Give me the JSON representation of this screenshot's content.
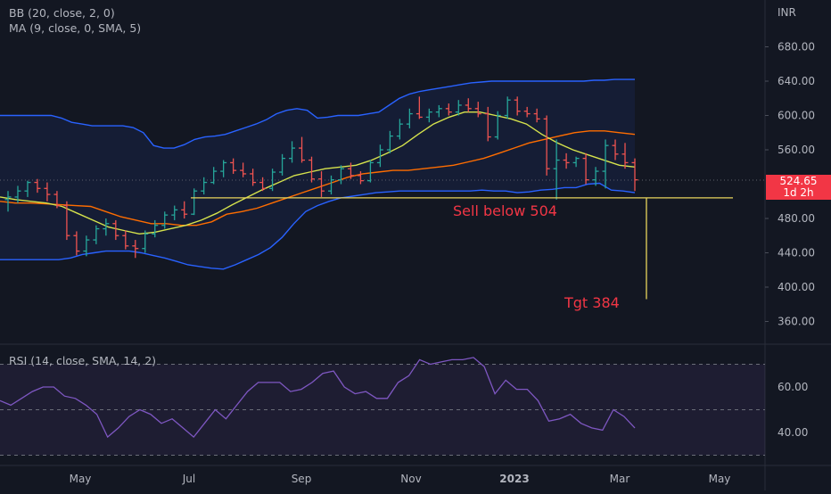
{
  "legend": {
    "bb": "BB (20, close, 2, 0)",
    "ma": "MA (9, close, 0, SMA, 5)",
    "rsi": "RSI (14, close, SMA, 14, 2)"
  },
  "price_axis": {
    "unit": "INR",
    "ticks": [
      "680.00",
      "640.00",
      "600.00",
      "560.00",
      "480.00",
      "440.00",
      "400.00",
      "360.00"
    ],
    "current_price": "524.65",
    "countdown": "1d 2h"
  },
  "rsi_axis": {
    "ticks": [
      "60.00",
      "40.00"
    ]
  },
  "time_axis": {
    "ticks": [
      "May",
      "Jul",
      "Sep",
      "Nov",
      "2023",
      "Mar",
      "May"
    ]
  },
  "annotations": {
    "sell": "Sell below 504",
    "target": "Tgt 384"
  },
  "colors": {
    "background": "#131722",
    "up": "#26a69a",
    "down": "#ef5350",
    "bb_band": "#2962ff",
    "bb_basis": "#ff6d00",
    "ma": "#d6e34c",
    "annotation_line": "#e8d45c",
    "annotation_text": "#f23645",
    "rsi": "#7e57c2"
  },
  "chart_data": {
    "type": "line",
    "title": "",
    "x_ticks": [
      "May",
      "Jul",
      "Sep",
      "Nov",
      "2023",
      "Mar",
      "May"
    ],
    "y_range": [
      340,
      700
    ],
    "sell_level": 504,
    "target_level": 384,
    "series": [
      {
        "values": [
          505,
          512,
          522,
          522,
          512,
          508,
          495,
          470,
          440,
          452,
          465,
          472,
          460,
          445,
          440,
          460,
          470,
          478,
          490,
          498,
          492,
          510,
          518,
          532,
          545,
          540,
          535,
          530,
          520,
          518,
          532,
          540,
          550,
          560,
          548,
          530,
          518,
          520,
          535,
          548,
          540,
          530,
          522,
          548,
          560,
          578,
          590,
          600,
          606,
          604,
          608,
          610,
          612,
          598,
          588,
          600,
          605,
          608,
          602,
          595,
          555,
          540,
          560,
          552,
          545,
          532,
          528,
          555,
          565,
          548,
          530,
          522
        ]
      },
      {
        "values": [
          600,
          600,
          600,
          600,
          600,
          600,
          597,
          592,
          590,
          588,
          588,
          588,
          588,
          586,
          580,
          565,
          562,
          562,
          566,
          572,
          575,
          576,
          578,
          582,
          586,
          590,
          595,
          602,
          606,
          608,
          606,
          597,
          598,
          600,
          600,
          600,
          602,
          604,
          612,
          620,
          625,
          628,
          630,
          632,
          634,
          636,
          638,
          639,
          640,
          640,
          640,
          640,
          640,
          640,
          640,
          640,
          640,
          640,
          641,
          641,
          642,
          642,
          642
        ]
      },
      {
        "values": [
          500,
          498,
          498,
          497,
          496,
          495,
          494,
          488,
          482,
          478,
          474,
          474,
          472,
          472,
          476,
          485,
          488,
          492,
          498,
          504,
          510,
          516,
          522,
          528,
          532,
          534,
          536,
          536,
          538,
          540,
          542,
          546,
          550,
          556,
          562,
          568,
          572,
          576,
          580,
          582,
          582,
          580,
          578
        ]
      },
      {
        "values": [
          432,
          432,
          432,
          432,
          432,
          432,
          434,
          438,
          440,
          442,
          442,
          442,
          440,
          437,
          434,
          430,
          426,
          424,
          422,
          421,
          426,
          432,
          438,
          446,
          458,
          474,
          488,
          495,
          500,
          504,
          506,
          508,
          510,
          511,
          512,
          512,
          512,
          512,
          512,
          512,
          512,
          513,
          512,
          512,
          510,
          511,
          513,
          514,
          516,
          516,
          520,
          521,
          513,
          512,
          510
        ]
      },
      {
        "values": [
          505,
          502,
          500,
          498,
          494,
          486,
          478,
          470,
          466,
          462,
          464,
          468,
          472,
          478,
          486,
          496,
          505,
          514,
          522,
          530,
          534,
          538,
          540,
          542,
          548,
          556,
          565,
          578,
          590,
          598,
          604,
          604,
          600,
          596,
          590,
          578,
          568,
          560,
          554,
          548,
          542,
          540
        ]
      },
      {
        "name": "RSI",
        "values": [
          54,
          52,
          55,
          58,
          60,
          60,
          56,
          55,
          52,
          48,
          38,
          42,
          47,
          50,
          48,
          44,
          46,
          42,
          38,
          44,
          50,
          46,
          52,
          58,
          62,
          62,
          62,
          58,
          59,
          62,
          66,
          67,
          60,
          57,
          58,
          55,
          55,
          62,
          65,
          72,
          70,
          71,
          72,
          72,
          73,
          69,
          57,
          63,
          59,
          59,
          54,
          45,
          46,
          48,
          44,
          42,
          41,
          50,
          47,
          42
        ]
      }
    ],
    "candles": [
      {
        "o": 502,
        "h": 512,
        "l": 488,
        "c": 505
      },
      {
        "o": 505,
        "h": 518,
        "l": 498,
        "c": 512
      },
      {
        "o": 512,
        "h": 524,
        "l": 505,
        "c": 522
      },
      {
        "o": 522,
        "h": 526,
        "l": 510,
        "c": 515
      },
      {
        "o": 515,
        "h": 522,
        "l": 500,
        "c": 508
      },
      {
        "o": 508,
        "h": 512,
        "l": 492,
        "c": 495
      },
      {
        "o": 495,
        "h": 500,
        "l": 455,
        "c": 460
      },
      {
        "o": 460,
        "h": 465,
        "l": 437,
        "c": 442
      },
      {
        "o": 442,
        "h": 460,
        "l": 436,
        "c": 455
      },
      {
        "o": 455,
        "h": 472,
        "l": 450,
        "c": 468
      },
      {
        "o": 468,
        "h": 480,
        "l": 460,
        "c": 474
      },
      {
        "o": 474,
        "h": 478,
        "l": 455,
        "c": 460
      },
      {
        "o": 460,
        "h": 466,
        "l": 444,
        "c": 448
      },
      {
        "o": 448,
        "h": 455,
        "l": 434,
        "c": 445
      },
      {
        "o": 445,
        "h": 466,
        "l": 440,
        "c": 462
      },
      {
        "o": 462,
        "h": 478,
        "l": 458,
        "c": 472
      },
      {
        "o": 472,
        "h": 488,
        "l": 468,
        "c": 484
      },
      {
        "o": 484,
        "h": 495,
        "l": 478,
        "c": 490
      },
      {
        "o": 490,
        "h": 500,
        "l": 480,
        "c": 485
      },
      {
        "o": 485,
        "h": 515,
        "l": 484,
        "c": 512
      },
      {
        "o": 512,
        "h": 528,
        "l": 508,
        "c": 522
      },
      {
        "o": 522,
        "h": 540,
        "l": 520,
        "c": 535
      },
      {
        "o": 535,
        "h": 548,
        "l": 528,
        "c": 545
      },
      {
        "o": 545,
        "h": 550,
        "l": 532,
        "c": 536
      },
      {
        "o": 536,
        "h": 545,
        "l": 528,
        "c": 532
      },
      {
        "o": 532,
        "h": 538,
        "l": 518,
        "c": 522
      },
      {
        "o": 522,
        "h": 528,
        "l": 512,
        "c": 515
      },
      {
        "o": 515,
        "h": 538,
        "l": 512,
        "c": 534
      },
      {
        "o": 534,
        "h": 555,
        "l": 530,
        "c": 550
      },
      {
        "o": 550,
        "h": 570,
        "l": 545,
        "c": 562
      },
      {
        "o": 562,
        "h": 575,
        "l": 545,
        "c": 548
      },
      {
        "o": 548,
        "h": 552,
        "l": 522,
        "c": 526
      },
      {
        "o": 526,
        "h": 535,
        "l": 505,
        "c": 512
      },
      {
        "o": 512,
        "h": 530,
        "l": 508,
        "c": 525
      },
      {
        "o": 525,
        "h": 542,
        "l": 520,
        "c": 538
      },
      {
        "o": 538,
        "h": 545,
        "l": 526,
        "c": 530
      },
      {
        "o": 530,
        "h": 535,
        "l": 520,
        "c": 524
      },
      {
        "o": 524,
        "h": 548,
        "l": 522,
        "c": 545
      },
      {
        "o": 545,
        "h": 566,
        "l": 540,
        "c": 560
      },
      {
        "o": 560,
        "h": 582,
        "l": 556,
        "c": 576
      },
      {
        "o": 576,
        "h": 596,
        "l": 572,
        "c": 590
      },
      {
        "o": 590,
        "h": 608,
        "l": 585,
        "c": 602
      },
      {
        "o": 602,
        "h": 622,
        "l": 596,
        "c": 598
      },
      {
        "o": 598,
        "h": 608,
        "l": 592,
        "c": 604
      },
      {
        "o": 604,
        "h": 612,
        "l": 598,
        "c": 608
      },
      {
        "o": 608,
        "h": 614,
        "l": 600,
        "c": 604
      },
      {
        "o": 604,
        "h": 618,
        "l": 600,
        "c": 612
      },
      {
        "o": 612,
        "h": 620,
        "l": 604,
        "c": 608
      },
      {
        "o": 608,
        "h": 616,
        "l": 598,
        "c": 602
      },
      {
        "o": 602,
        "h": 610,
        "l": 570,
        "c": 575
      },
      {
        "o": 575,
        "h": 605,
        "l": 572,
        "c": 600
      },
      {
        "o": 600,
        "h": 622,
        "l": 596,
        "c": 618
      },
      {
        "o": 618,
        "h": 622,
        "l": 600,
        "c": 605
      },
      {
        "o": 605,
        "h": 610,
        "l": 598,
        "c": 602
      },
      {
        "o": 602,
        "h": 608,
        "l": 592,
        "c": 596
      },
      {
        "o": 596,
        "h": 600,
        "l": 530,
        "c": 538
      },
      {
        "o": 538,
        "h": 572,
        "l": 502,
        "c": 548
      },
      {
        "o": 548,
        "h": 556,
        "l": 538,
        "c": 545
      },
      {
        "o": 545,
        "h": 552,
        "l": 540,
        "c": 550
      },
      {
        "o": 550,
        "h": 556,
        "l": 520,
        "c": 525
      },
      {
        "o": 525,
        "h": 540,
        "l": 518,
        "c": 535
      },
      {
        "o": 535,
        "h": 572,
        "l": 515,
        "c": 565
      },
      {
        "o": 565,
        "h": 572,
        "l": 548,
        "c": 555
      },
      {
        "o": 555,
        "h": 568,
        "l": 538,
        "c": 545
      },
      {
        "o": 545,
        "h": 550,
        "l": 512,
        "c": 525
      }
    ]
  }
}
